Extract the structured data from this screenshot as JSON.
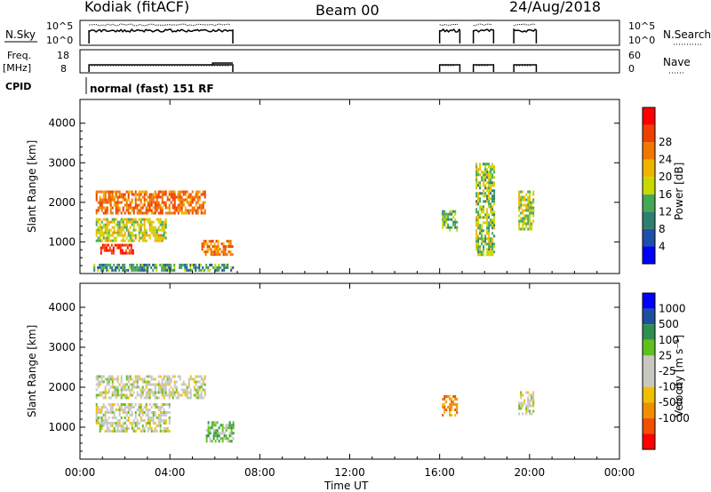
{
  "header": {
    "station": "Kodiak (fitACF)",
    "beam": "Beam 00",
    "date": "24/Aug/2018"
  },
  "noise_panel": {
    "left_label": "N.Sky",
    "left_ticks": [
      "10^5",
      "10^0"
    ],
    "right_ticks": [
      "10^5",
      "10^0"
    ],
    "right_label": "N.Search"
  },
  "freq_panel": {
    "left_label_1": "Freq.",
    "left_label_2": "[MHz]",
    "left_ticks": [
      "18",
      "8"
    ],
    "right_ticks": [
      "60",
      "0"
    ],
    "right_label": "Nave"
  },
  "cpid": {
    "label": "CPID",
    "text": "normal (fast) 151 RF"
  },
  "colors": {
    "power_scale": [
      "#0000ff",
      "#1f4fa8",
      "#2f7f6f",
      "#46a854",
      "#c8d800",
      "#f0b400",
      "#f07800",
      "#f04000",
      "#ff0000"
    ],
    "velocity_scale": [
      "#ff0000",
      "#f05000",
      "#f09000",
      "#f0c000",
      "#c8c8c0",
      "#c8c8c0",
      "#60c020",
      "#2f8f4f",
      "#1f4f9f",
      "#0000ff"
    ]
  },
  "chart_data": [
    {
      "type": "heatmap",
      "name": "power",
      "ylabel": "Slant Range [km]",
      "yticks": [
        "1000",
        "2000",
        "3000",
        "4000"
      ],
      "ylim": [
        200,
        4600
      ],
      "xlim": [
        0,
        24
      ],
      "colorbar": {
        "label": "Power [dB]",
        "ticks": [
          "4",
          "8",
          "12",
          "16",
          "20",
          "24",
          "28"
        ],
        "range": [
          0,
          32
        ]
      },
      "regions": [
        {
          "x": [
            0.7,
            5.6
          ],
          "y": [
            1700,
            2300
          ],
          "level": "20-28"
        },
        {
          "x": [
            0.7,
            3.8
          ],
          "y": [
            1000,
            1600
          ],
          "level": "12-22"
        },
        {
          "x": [
            0.9,
            2.4
          ],
          "y": [
            700,
            950
          ],
          "level": "24-32"
        },
        {
          "x": [
            5.4,
            6.8
          ],
          "y": [
            650,
            1050
          ],
          "level": "20-28"
        },
        {
          "x": [
            0.6,
            6.8
          ],
          "y": [
            250,
            450
          ],
          "level": "4-16"
        },
        {
          "x": [
            16.1,
            16.8
          ],
          "y": [
            1300,
            1800
          ],
          "level": "8-16"
        },
        {
          "x": [
            17.6,
            18.4
          ],
          "y": [
            700,
            3000
          ],
          "level": "8-20"
        },
        {
          "x": [
            19.5,
            20.2
          ],
          "y": [
            1300,
            2300
          ],
          "level": "12-20"
        }
      ]
    },
    {
      "type": "heatmap",
      "name": "velocity",
      "xlabel": "Time UT",
      "ylabel": "Slant Range [km]",
      "yticks": [
        "1000",
        "2000",
        "3000",
        "4000"
      ],
      "xticks": [
        "00:00",
        "04:00",
        "08:00",
        "12:00",
        "16:00",
        "20:00",
        "00:00"
      ],
      "ylim": [
        200,
        4600
      ],
      "xlim": [
        0,
        24
      ],
      "colorbar": {
        "label": "Velocity [m s⁻¹]",
        "ticks": [
          "1000",
          "500",
          "100",
          "25",
          "-25",
          "-100",
          "-500",
          "-1000"
        ]
      },
      "regions": [
        {
          "x": [
            0.7,
            5.6
          ],
          "y": [
            1700,
            2300
          ],
          "level": "-25 to 25"
        },
        {
          "x": [
            0.7,
            4.0
          ],
          "y": [
            900,
            1600
          ],
          "level": "-25 to 25"
        },
        {
          "x": [
            5.6,
            6.8
          ],
          "y": [
            650,
            1150
          ],
          "level": "100 to 500"
        },
        {
          "x": [
            16.1,
            16.8
          ],
          "y": [
            1300,
            1800
          ],
          "level": "-100 to -500"
        },
        {
          "x": [
            19.5,
            20.2
          ],
          "y": [
            1300,
            1900
          ],
          "level": "-25 to 25"
        }
      ]
    }
  ]
}
